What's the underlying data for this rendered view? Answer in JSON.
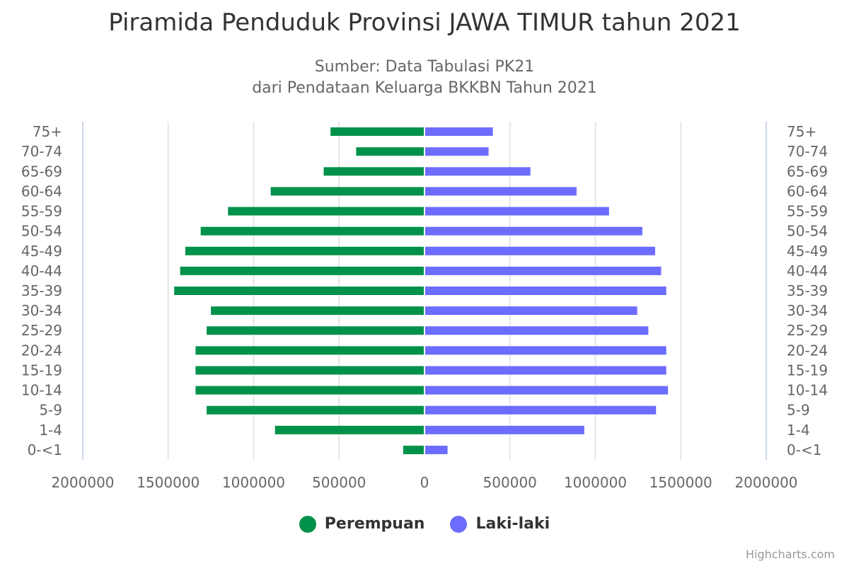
{
  "colors": {
    "female": "#00924a",
    "male": "#6c6cff",
    "grid": "#e6e6e6",
    "axis_line": "#ccd6eb"
  },
  "legend": {
    "female_label": "Perempuan",
    "male_label": "Laki-laki"
  },
  "credits": "Highcharts.com",
  "chart_data": {
    "type": "bar",
    "title": "Piramida Penduduk Provinsi JAWA TIMUR tahun 2021",
    "subtitle_lines": [
      "Sumber: Data Tabulasi PK21",
      "dari Pendataan Keluarga BKKBN Tahun 2021"
    ],
    "categories": [
      "75+",
      "70-74",
      "65-69",
      "60-64",
      "55-59",
      "50-54",
      "45-49",
      "40-44",
      "35-39",
      "30-34",
      "25-29",
      "20-24",
      "15-19",
      "10-14",
      "5-9",
      "1-4",
      "0-<1"
    ],
    "series": [
      {
        "name": "Perempuan",
        "values": [
          550000,
          400000,
          590000,
          900000,
          1150000,
          1310000,
          1400000,
          1430000,
          1465000,
          1250000,
          1275000,
          1340000,
          1340000,
          1340000,
          1275000,
          875000,
          125000
        ]
      },
      {
        "name": "Laki-laki",
        "values": [
          400000,
          375000,
          620000,
          890000,
          1080000,
          1275000,
          1350000,
          1385000,
          1415000,
          1245000,
          1310000,
          1415000,
          1415000,
          1425000,
          1355000,
          935000,
          135000
        ]
      }
    ],
    "x_ticks": [
      "2000000",
      "1500000",
      "1000000",
      "500000",
      "0",
      "500000",
      "1000000",
      "1500000",
      "2000000"
    ],
    "xlim": [
      -2000000,
      2000000
    ],
    "grid": true,
    "legend_position": "bottom"
  }
}
